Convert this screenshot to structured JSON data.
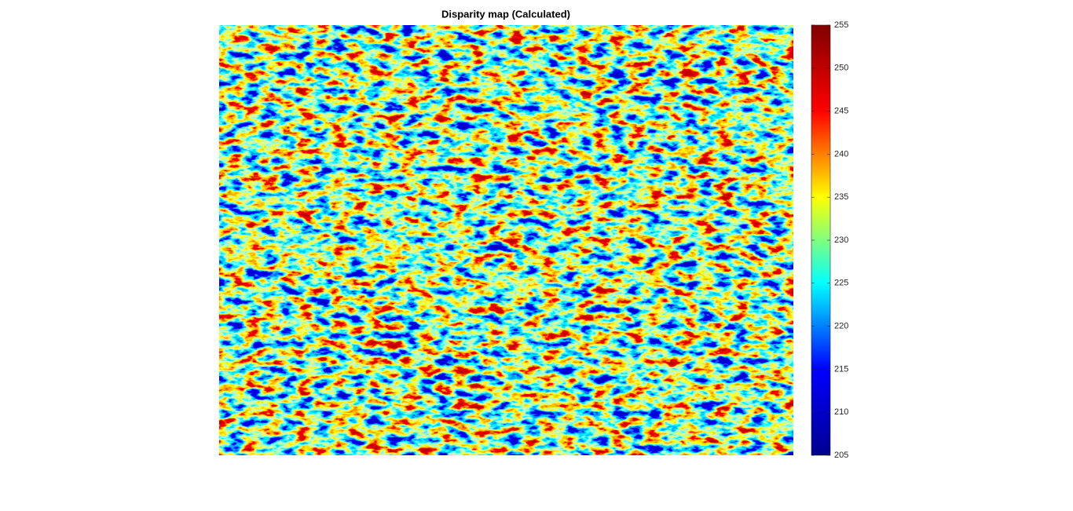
{
  "chart_data": {
    "type": "heatmap",
    "title": "Disparity map (Calculated)",
    "colormap": [
      "#00008f",
      "#0000ff",
      "#00ffff",
      "#ffff00",
      "#ff0000",
      "#800000"
    ],
    "clim": [
      205,
      255
    ],
    "cticks": [
      205,
      210,
      215,
      220,
      225,
      230,
      235,
      240,
      245,
      250,
      255
    ]
  }
}
